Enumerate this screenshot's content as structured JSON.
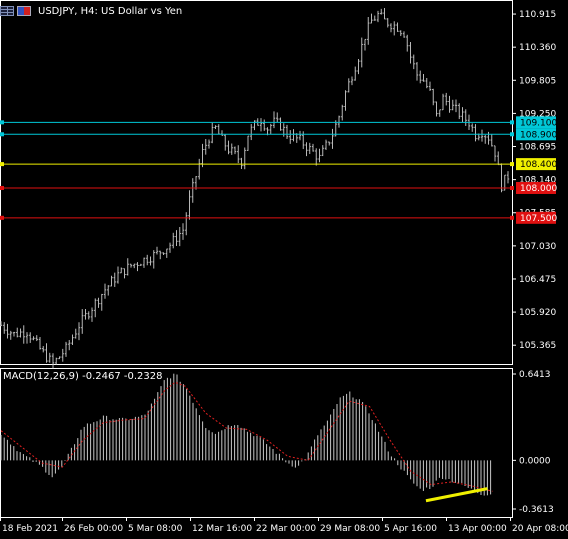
{
  "header": {
    "symbol_icon": "grid-icon",
    "flag_icon": "flag-icon",
    "title": "USDJPY, H4:  US Dollar vs Yen"
  },
  "colors": {
    "background": "#000000",
    "candles": "#b8b8b8",
    "level_cyan": "#00c8d8",
    "level_yellow": "#f0f000",
    "level_red": "#e01010",
    "macd_hist": "#c8c8c8",
    "macd_signal": "#e02020",
    "trendline": "#f0f000"
  },
  "macd": {
    "label": "MACD(12,26,9) -0.2467 -0.2328",
    "ticks": [
      "0.6413",
      "0.0000",
      "-0.3613"
    ]
  },
  "chart_data": {
    "type": "candlestick",
    "symbol": "USDJPY",
    "timeframe": "H4",
    "price_ticks": [
      "110.915",
      "110.360",
      "109.805",
      "109.250",
      "108.695",
      "108.140",
      "107.585",
      "107.030",
      "106.475",
      "105.920",
      "105.365"
    ],
    "ylim": [
      105.05,
      111.05
    ],
    "x_labels": [
      "18 Feb 2021",
      "26 Feb 00:00",
      "5 Mar 08:00",
      "12 Mar 16:00",
      "22 Mar 00:00",
      "29 Mar 08:00",
      "5 Apr 16:00",
      "13 Apr 00:00",
      "20 Apr 08:00"
    ],
    "levels": [
      {
        "value": "109.100",
        "price": 109.1,
        "color": "cyan"
      },
      {
        "value": "108.900",
        "price": 108.9,
        "color": "cyan"
      },
      {
        "value": "108.400",
        "price": 108.4,
        "color": "yellow"
      },
      {
        "value": "108.000",
        "price": 108.0,
        "color": "red"
      },
      {
        "value": "107.500",
        "price": 107.5,
        "color": "red"
      }
    ],
    "close_path": [
      [
        0,
        105.7
      ],
      [
        4,
        105.55
      ],
      [
        8,
        105.6
      ],
      [
        12,
        105.3
      ],
      [
        16,
        105.05
      ],
      [
        20,
        105.3
      ],
      [
        24,
        105.7
      ],
      [
        28,
        106.0
      ],
      [
        32,
        106.3
      ],
      [
        36,
        106.55
      ],
      [
        40,
        106.7
      ],
      [
        44,
        106.8
      ],
      [
        48,
        106.9
      ],
      [
        52,
        107.05
      ],
      [
        56,
        107.3
      ],
      [
        58,
        107.8
      ],
      [
        60,
        108.2
      ],
      [
        62,
        108.6
      ],
      [
        64,
        108.85
      ],
      [
        66,
        109.0
      ],
      [
        68,
        108.8
      ],
      [
        70,
        108.65
      ],
      [
        72,
        108.55
      ],
      [
        74,
        108.45
      ],
      [
        76,
        108.9
      ],
      [
        78,
        109.05
      ],
      [
        80,
        109.15
      ],
      [
        82,
        109.0
      ],
      [
        84,
        109.1
      ],
      [
        86,
        109.05
      ],
      [
        88,
        108.9
      ],
      [
        90,
        108.85
      ],
      [
        92,
        108.8
      ],
      [
        94,
        108.7
      ],
      [
        96,
        108.6
      ],
      [
        98,
        108.5
      ],
      [
        100,
        108.7
      ],
      [
        102,
        108.9
      ],
      [
        104,
        109.2
      ],
      [
        106,
        109.6
      ],
      [
        108,
        109.9
      ],
      [
        110,
        110.2
      ],
      [
        112,
        110.55
      ],
      [
        114,
        110.8
      ],
      [
        116,
        110.9
      ],
      [
        118,
        110.8
      ],
      [
        120,
        110.75
      ],
      [
        122,
        110.7
      ],
      [
        124,
        110.6
      ],
      [
        126,
        110.2
      ],
      [
        128,
        109.9
      ],
      [
        130,
        109.8
      ],
      [
        132,
        109.6
      ],
      [
        134,
        109.2
      ],
      [
        136,
        109.5
      ],
      [
        138,
        109.4
      ],
      [
        140,
        109.3
      ],
      [
        142,
        109.2
      ],
      [
        144,
        109.1
      ],
      [
        146,
        108.9
      ],
      [
        148,
        108.95
      ],
      [
        150,
        108.85
      ],
      [
        152,
        108.6
      ],
      [
        154,
        108.05
      ],
      [
        156,
        108.2
      ]
    ],
    "macd_hist_path": [
      [
        0,
        0.2
      ],
      [
        4,
        0.05
      ],
      [
        8,
        -0.05
      ],
      [
        10,
        -0.12
      ],
      [
        12,
        -0.05
      ],
      [
        14,
        0.1
      ],
      [
        16,
        0.25
      ],
      [
        20,
        0.32
      ],
      [
        24,
        0.3
      ],
      [
        28,
        0.33
      ],
      [
        30,
        0.45
      ],
      [
        32,
        0.6
      ],
      [
        34,
        0.64
      ],
      [
        36,
        0.55
      ],
      [
        38,
        0.4
      ],
      [
        40,
        0.25
      ],
      [
        42,
        0.2
      ],
      [
        44,
        0.25
      ],
      [
        46,
        0.28
      ],
      [
        48,
        0.22
      ],
      [
        50,
        0.18
      ],
      [
        52,
        0.12
      ],
      [
        54,
        0.05
      ],
      [
        56,
        -0.02
      ],
      [
        58,
        -0.05
      ],
      [
        60,
        0.05
      ],
      [
        62,
        0.2
      ],
      [
        64,
        0.3
      ],
      [
        66,
        0.45
      ],
      [
        68,
        0.5
      ],
      [
        70,
        0.45
      ],
      [
        72,
        0.35
      ],
      [
        74,
        0.2
      ],
      [
        76,
        0.05
      ],
      [
        78,
        -0.05
      ],
      [
        80,
        -0.15
      ],
      [
        82,
        -0.22
      ],
      [
        84,
        -0.2
      ],
      [
        86,
        -0.12
      ],
      [
        88,
        -0.15
      ],
      [
        90,
        -0.18
      ],
      [
        92,
        -0.22
      ],
      [
        94,
        -0.25
      ],
      [
        96,
        -0.25
      ]
    ],
    "macd_signal_path": [
      [
        0,
        0.22
      ],
      [
        4,
        0.1
      ],
      [
        8,
        -0.02
      ],
      [
        12,
        -0.05
      ],
      [
        16,
        0.15
      ],
      [
        20,
        0.28
      ],
      [
        24,
        0.3
      ],
      [
        28,
        0.31
      ],
      [
        32,
        0.52
      ],
      [
        34,
        0.58
      ],
      [
        36,
        0.55
      ],
      [
        40,
        0.35
      ],
      [
        44,
        0.24
      ],
      [
        48,
        0.23
      ],
      [
        52,
        0.15
      ],
      [
        56,
        0.03
      ],
      [
        60,
        0.0
      ],
      [
        64,
        0.22
      ],
      [
        68,
        0.44
      ],
      [
        72,
        0.4
      ],
      [
        76,
        0.15
      ],
      [
        80,
        -0.08
      ],
      [
        84,
        -0.18
      ],
      [
        88,
        -0.16
      ],
      [
        92,
        -0.19
      ],
      [
        96,
        -0.23
      ]
    ],
    "macd_trendline": [
      [
        83,
        -0.3
      ],
      [
        95,
        -0.21
      ]
    ],
    "ylim_macd": [
      -0.3613,
      0.6413
    ]
  }
}
